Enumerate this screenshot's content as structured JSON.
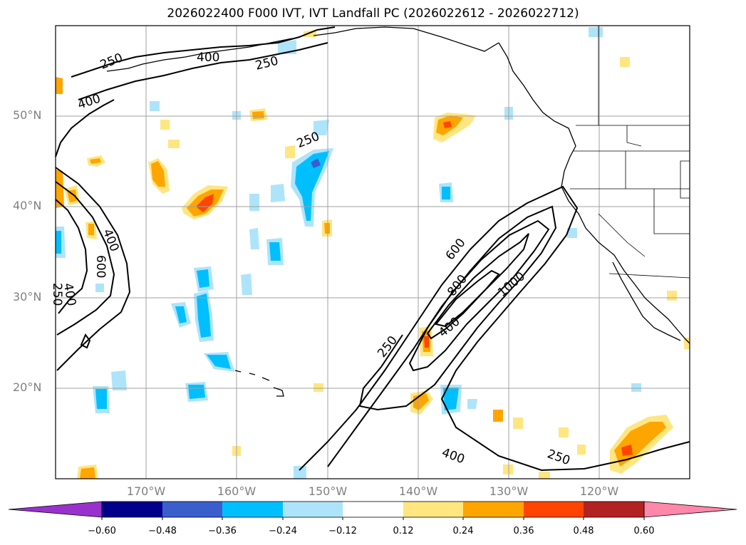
{
  "title": "2026022400 F000 IVT, IVT Landfall PC (2026022612 - 2026022712)",
  "longitude_labels": [
    "170°W",
    "160°W",
    "150°W",
    "140°W",
    "130°W",
    "120°W"
  ],
  "latitude_labels": [
    "50°N",
    "40°N",
    "30°N",
    "20°N"
  ],
  "contour_labels": [
    "250",
    "400",
    "250",
    "400",
    "250",
    "400",
    "600",
    "250",
    "400",
    "600",
    "800",
    "1000",
    "400",
    "250",
    "400",
    "250"
  ],
  "colorbar": {
    "tick_labels": [
      "−0.60",
      "−0.48",
      "−0.36",
      "−0.24",
      "−0.12",
      "0.12",
      "0.24",
      "0.36",
      "0.48",
      "0.60"
    ],
    "colors": [
      "#9932cc",
      "#00008b",
      "#3a5fcd",
      "#00bfff",
      "#aee4fa",
      "#ffffff",
      "#ffe680",
      "#ffa500",
      "#ff4500",
      "#b22222",
      "#ff88aa"
    ]
  }
}
